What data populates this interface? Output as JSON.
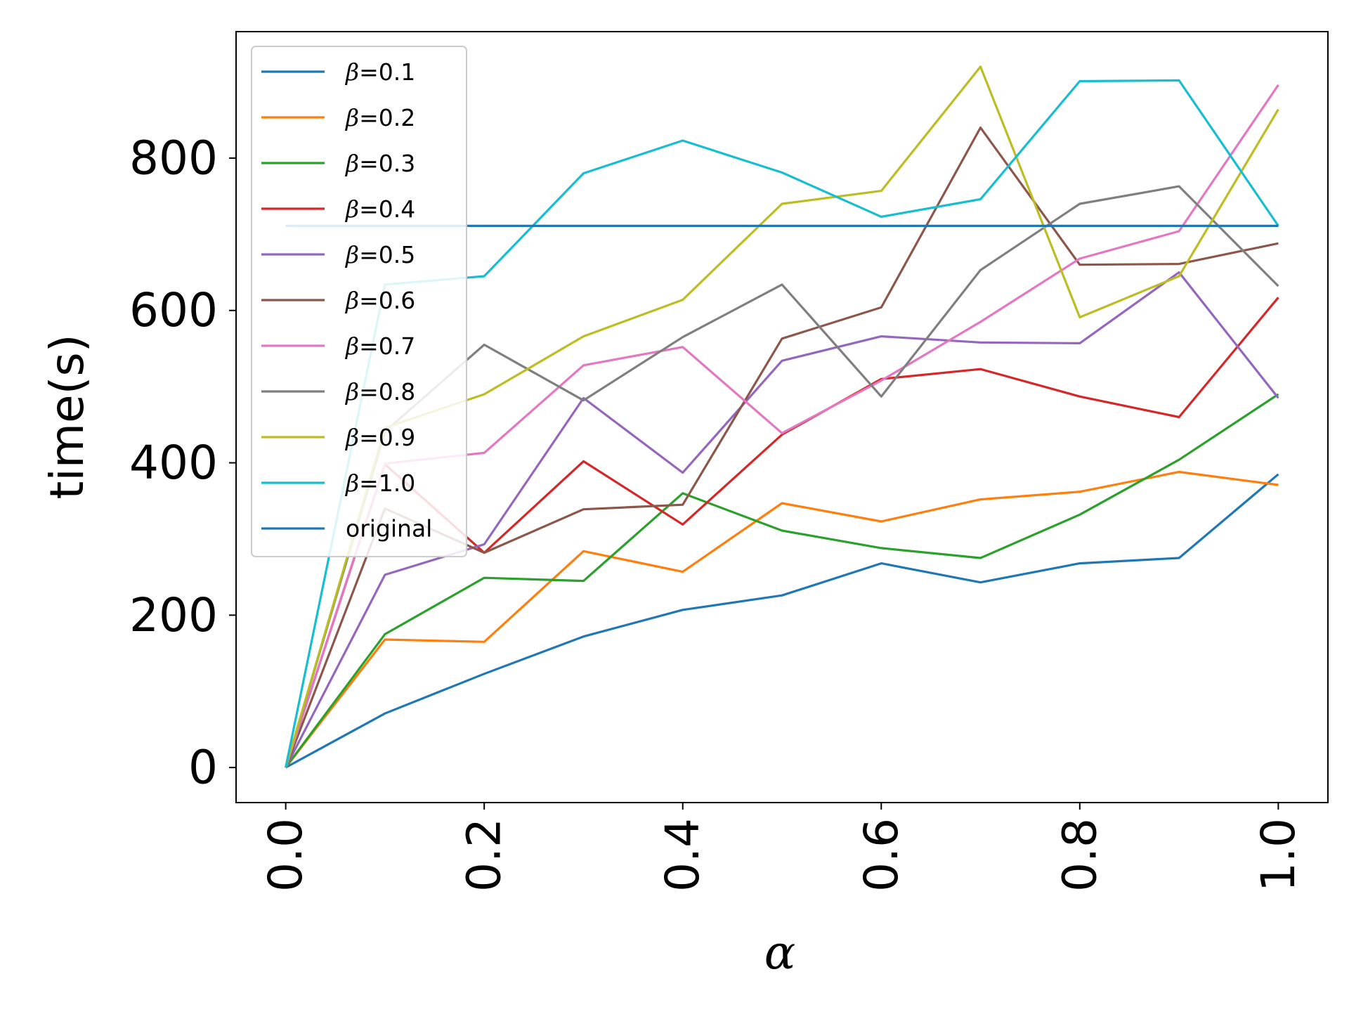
{
  "chart_data": {
    "type": "line",
    "title": "",
    "xlabel": "α",
    "ylabel": "time(s)",
    "xlim": [
      -0.05,
      1.05
    ],
    "ylim": [
      -46,
      966
    ],
    "xticks": [
      0.0,
      0.2,
      0.4,
      0.6,
      0.8,
      1.0
    ],
    "xtick_labels": [
      "0.0",
      "0.2",
      "0.4",
      "0.6",
      "0.8",
      "1.0"
    ],
    "yticks": [
      0,
      200,
      400,
      600,
      800
    ],
    "ytick_labels": [
      "0",
      "200",
      "400",
      "600",
      "800"
    ],
    "legend_position": "top-left",
    "grid": false,
    "x": [
      0.0,
      0.1,
      0.2,
      0.3,
      0.4,
      0.5,
      0.6,
      0.7,
      0.8,
      0.9,
      1.0
    ],
    "series": [
      {
        "name": "β=0.1",
        "color": "#1f77b4",
        "values": [
          0,
          71,
          123,
          172,
          207,
          226,
          268,
          243,
          268,
          275,
          385
        ]
      },
      {
        "name": "β=0.2",
        "color": "#ff7f0e",
        "values": [
          0,
          168,
          165,
          284,
          257,
          347,
          323,
          352,
          362,
          388,
          371
        ]
      },
      {
        "name": "β=0.3",
        "color": "#2ca02c",
        "values": [
          0,
          175,
          249,
          245,
          360,
          311,
          288,
          275,
          332,
          404,
          490
        ]
      },
      {
        "name": "β=0.4",
        "color": "#d62728",
        "values": [
          0,
          398,
          282,
          402,
          319,
          437,
          510,
          523,
          487,
          460,
          617
        ]
      },
      {
        "name": "β=0.5",
        "color": "#9467bd",
        "values": [
          0,
          253,
          293,
          485,
          387,
          534,
          566,
          558,
          557,
          650,
          485
        ]
      },
      {
        "name": "β=0.6",
        "color": "#8c564b",
        "values": [
          0,
          340,
          282,
          339,
          345,
          563,
          604,
          840,
          660,
          661,
          688
        ]
      },
      {
        "name": "β=0.7",
        "color": "#e377c2",
        "values": [
          0,
          399,
          413,
          528,
          552,
          439,
          508,
          585,
          668,
          704,
          896
        ]
      },
      {
        "name": "β=0.8",
        "color": "#7f7f7f",
        "values": [
          0,
          441,
          555,
          482,
          565,
          634,
          487,
          653,
          740,
          763,
          632
        ]
      },
      {
        "name": "β=0.9",
        "color": "#bcbd22",
        "values": [
          0,
          446,
          490,
          566,
          614,
          740,
          757,
          920,
          591,
          645,
          864
        ]
      },
      {
        "name": "β=1.0",
        "color": "#17becf",
        "values": [
          0,
          634,
          645,
          780,
          823,
          781,
          723,
          746,
          901,
          902,
          711
        ]
      },
      {
        "name": "original",
        "color": "#1f77b4",
        "values": [
          711,
          711,
          711,
          711,
          711,
          711,
          711,
          711,
          711,
          711,
          711
        ]
      }
    ]
  }
}
